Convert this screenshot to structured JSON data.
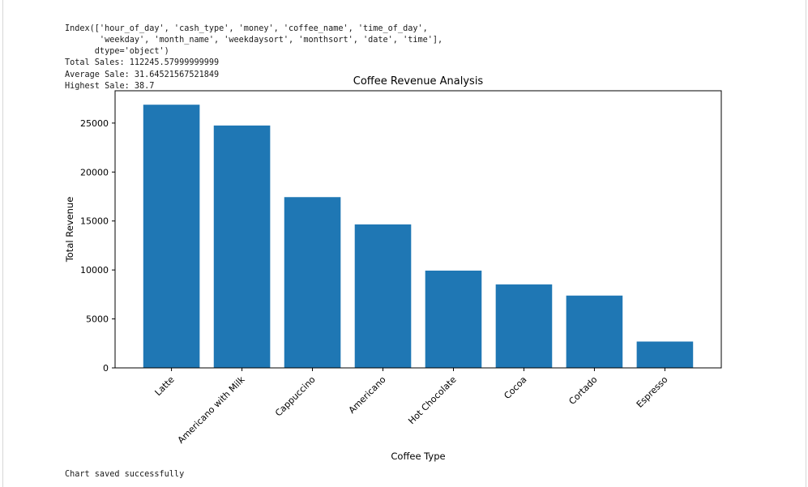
{
  "cell_output": {
    "lines": [
      "Index(['hour_of_day', 'cash_type', 'money', 'coffee_name', 'time_of_day',",
      "       'weekday', 'month_name', 'weekdaysort', 'monthsort', 'date', 'time'],",
      "      dtype='object')",
      "Total Sales: 112245.57999999999",
      "Average Sale: 31.64521567521849",
      "Highest Sale: 38.7"
    ],
    "footer": "Chart saved successfully"
  },
  "chart_data": {
    "type": "bar",
    "title": "Coffee Revenue Analysis",
    "xlabel": "Coffee Type",
    "ylabel": "Total Revenue",
    "categories": [
      "Latte",
      "Americano with Milk",
      "Cappuccino",
      "Americano",
      "Hot Chocolate",
      "Cocoa",
      "Cortado",
      "Espresso"
    ],
    "values": [
      26875,
      24751,
      17439,
      14650,
      9934,
      8521,
      7384,
      2690
    ],
    "ylim": [
      0,
      28300
    ],
    "yticks": [
      0,
      5000,
      10000,
      15000,
      20000,
      25000
    ],
    "bar_color": "#1f77b4",
    "grid": false
  }
}
